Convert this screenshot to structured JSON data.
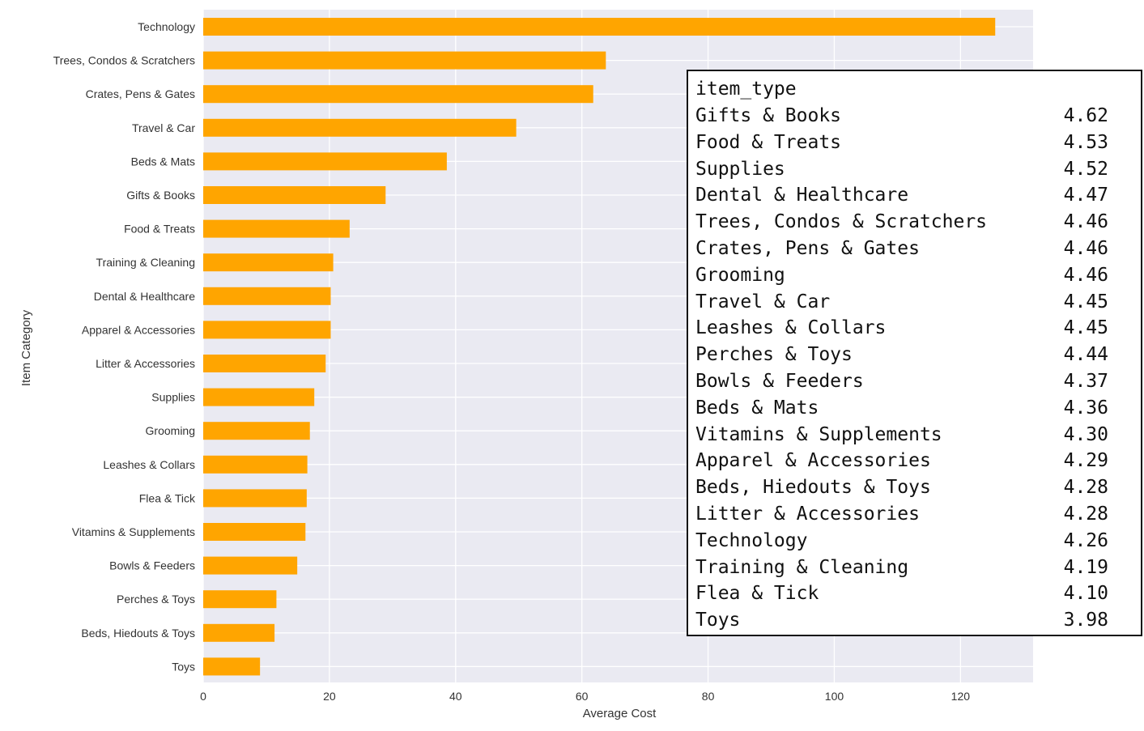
{
  "chart_data": {
    "type": "bar",
    "orientation": "horizontal",
    "categories": [
      "Technology",
      "Trees, Condos & Scratchers",
      "Crates, Pens & Gates",
      "Travel & Car",
      "Beds & Mats",
      "Gifts & Books",
      "Food & Treats",
      "Training & Cleaning",
      "Dental & Healthcare",
      "Apparel & Accessories",
      "Litter & Accessories",
      "Supplies",
      "Grooming",
      "Leashes & Collars",
      "Flea & Tick",
      "Vitamins & Supplements",
      "Bowls & Feeders",
      "Perches & Toys",
      "Beds, Hiedouts & Toys",
      "Toys"
    ],
    "values": [
      125.5,
      63.8,
      61.8,
      49.6,
      38.6,
      28.9,
      23.2,
      20.6,
      20.2,
      20.2,
      19.4,
      17.6,
      16.9,
      16.5,
      16.4,
      16.2,
      14.9,
      11.6,
      11.3,
      9.0
    ],
    "xlabel": "Average Cost",
    "ylabel": "Item Category",
    "xlim": [
      0,
      131.5
    ],
    "xticks": [
      0,
      20,
      40,
      60,
      80,
      100,
      120
    ],
    "grid": true,
    "bar_color": "#ffa500",
    "background_color": "#eaeaf2"
  },
  "output_table": {
    "header": "item_type",
    "rows": [
      {
        "name": "Gifts & Books",
        "value": "4.62"
      },
      {
        "name": "Food & Treats",
        "value": "4.53"
      },
      {
        "name": "Supplies",
        "value": "4.52"
      },
      {
        "name": "Dental & Healthcare",
        "value": "4.47"
      },
      {
        "name": "Trees, Condos & Scratchers",
        "value": "4.46"
      },
      {
        "name": "Crates, Pens & Gates",
        "value": "4.46"
      },
      {
        "name": "Grooming",
        "value": "4.46"
      },
      {
        "name": "Travel & Car",
        "value": "4.45"
      },
      {
        "name": "Leashes & Collars",
        "value": "4.45"
      },
      {
        "name": "Perches & Toys",
        "value": "4.44"
      },
      {
        "name": "Bowls & Feeders",
        "value": "4.37"
      },
      {
        "name": "Beds & Mats",
        "value": "4.36"
      },
      {
        "name": "Vitamins & Supplements",
        "value": "4.30"
      },
      {
        "name": "Apparel & Accessories",
        "value": "4.29"
      },
      {
        "name": "Beds, Hiedouts & Toys",
        "value": "4.28"
      },
      {
        "name": "Litter & Accessories",
        "value": "4.28"
      },
      {
        "name": "Technology",
        "value": "4.26"
      },
      {
        "name": "Training & Cleaning",
        "value": "4.19"
      },
      {
        "name": "Flea & Tick",
        "value": "4.10"
      },
      {
        "name": "Toys",
        "value": "3.98"
      }
    ]
  }
}
